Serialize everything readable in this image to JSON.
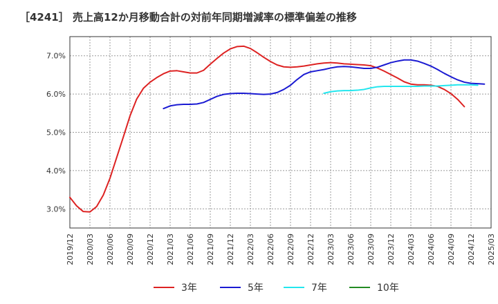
{
  "chart_data": {
    "type": "line",
    "title": "［4241］ 売上高12か月移動合計の対前年同期増減率の標準偏差の推移",
    "xlabel": "",
    "ylabel": "",
    "ylim": [
      2.5,
      7.5
    ],
    "y_ticks": [
      3.0,
      4.0,
      5.0,
      6.0,
      7.0
    ],
    "y_tick_labels": [
      "3.0%",
      "4.0%",
      "5.0%",
      "6.0%",
      "7.0%"
    ],
    "x_tick_labels": [
      "2019/12",
      "2020/03",
      "2020/06",
      "2020/09",
      "2020/12",
      "2021/03",
      "2021/06",
      "2021/09",
      "2021/12",
      "2022/03",
      "2022/06",
      "2022/09",
      "2022/12",
      "2023/03",
      "2023/06",
      "2023/09",
      "2023/12",
      "2024/03",
      "2024/06",
      "2024/09",
      "2024/12",
      "2025/03"
    ],
    "grid": true,
    "legend_position": "bottom",
    "series": [
      {
        "name": "3年",
        "color": "#dd2222",
        "start_index": 0,
        "values": [
          3.3,
          3.08,
          2.93,
          2.92,
          3.06,
          3.36,
          3.8,
          4.34,
          4.88,
          5.43,
          5.87,
          6.15,
          6.31,
          6.43,
          6.53,
          6.6,
          6.61,
          6.58,
          6.55,
          6.55,
          6.62,
          6.78,
          6.93,
          7.07,
          7.18,
          7.24,
          7.25,
          7.19,
          7.08,
          6.96,
          6.85,
          6.76,
          6.71,
          6.7,
          6.71,
          6.73,
          6.76,
          6.79,
          6.81,
          6.82,
          6.81,
          6.79,
          6.78,
          6.77,
          6.76,
          6.74,
          6.68,
          6.6,
          6.51,
          6.42,
          6.32,
          6.26,
          6.24,
          6.24,
          6.23,
          6.2,
          6.12,
          6.01,
          5.86,
          5.67
        ]
      },
      {
        "name": "5年",
        "color": "#1a1ad2",
        "start_index": 14,
        "values": [
          5.62,
          5.69,
          5.72,
          5.73,
          5.73,
          5.74,
          5.78,
          5.86,
          5.94,
          5.99,
          6.01,
          6.02,
          6.02,
          6.01,
          6.0,
          5.99,
          6.0,
          6.04,
          6.12,
          6.23,
          6.38,
          6.51,
          6.58,
          6.61,
          6.64,
          6.68,
          6.71,
          6.72,
          6.71,
          6.69,
          6.67,
          6.67,
          6.7,
          6.76,
          6.82,
          6.86,
          6.89,
          6.89,
          6.86,
          6.8,
          6.73,
          6.64,
          6.54,
          6.45,
          6.37,
          6.31,
          6.28,
          6.27,
          6.26
        ]
      },
      {
        "name": "7年",
        "color": "#22e6ee",
        "start_index": 38,
        "values": [
          6.02,
          6.06,
          6.08,
          6.09,
          6.09,
          6.1,
          6.12,
          6.16,
          6.19,
          6.2,
          6.2,
          6.2,
          6.2,
          6.2,
          6.2,
          6.21,
          6.21,
          6.21,
          6.22,
          6.23,
          6.24,
          6.24,
          6.24,
          6.23
        ]
      },
      {
        "name": "10年",
        "color": "#228b22",
        "start_index": 0,
        "values": []
      }
    ]
  }
}
